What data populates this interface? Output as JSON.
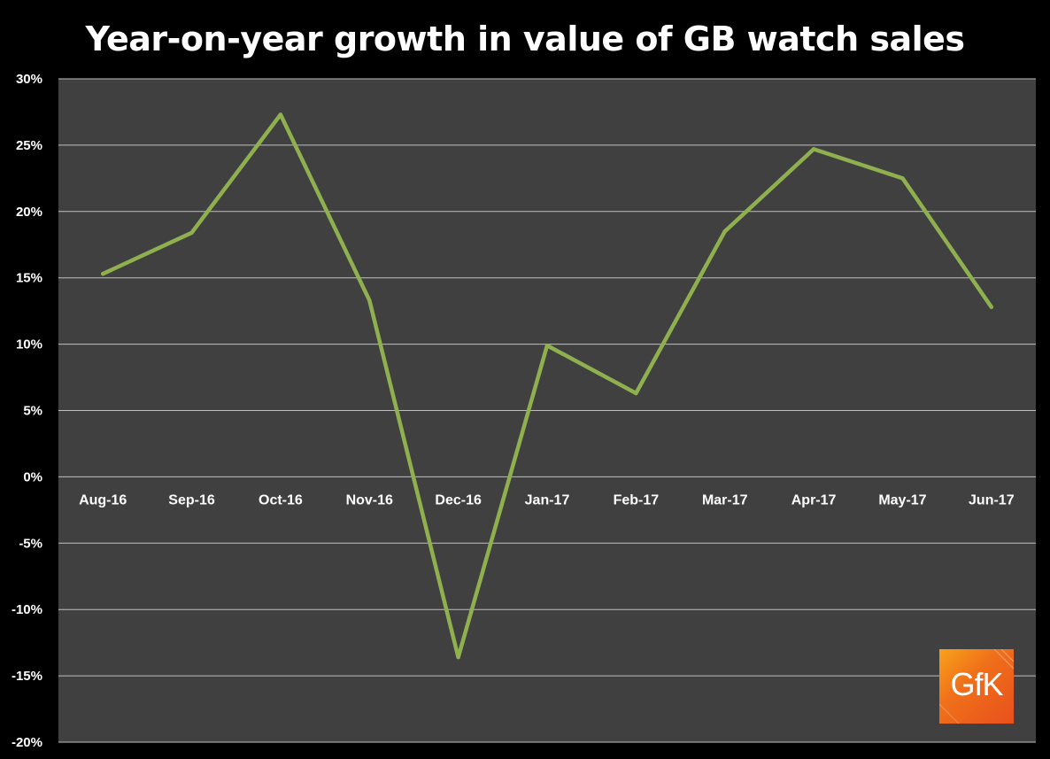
{
  "chart_data": {
    "type": "line",
    "title": "Year-on-year growth in value of GB watch sales",
    "xlabel": "",
    "ylabel": "",
    "categories": [
      "Aug-16",
      "Sep-16",
      "Oct-16",
      "Nov-16",
      "Dec-16",
      "Jan-17",
      "Feb-17",
      "Mar-17",
      "Apr-17",
      "May-17",
      "Jun-17"
    ],
    "series": [
      {
        "values": [
          15.3,
          18.4,
          27.3,
          13.3,
          -13.6,
          9.9,
          6.3,
          18.5,
          24.7,
          22.5,
          12.8
        ]
      }
    ],
    "ylim": [
      -20,
      30
    ],
    "yticks": [
      30,
      25,
      20,
      15,
      10,
      5,
      0,
      -5,
      -10,
      -15,
      -20
    ],
    "ytick_labels": [
      "30%",
      "25%",
      "20%",
      "15%",
      "10%",
      "5%",
      "0%",
      "-5%",
      "-10%",
      "-15%",
      "-20%"
    ],
    "grid": true,
    "legend": "none"
  },
  "colors": {
    "page_background": "#000000",
    "plot_background": "#404040",
    "gridline": "#bfbfbf",
    "line": "#8fb04e",
    "text": "#ffffff"
  },
  "logo": {
    "text": "GfK",
    "icon": "gfk-logo"
  }
}
